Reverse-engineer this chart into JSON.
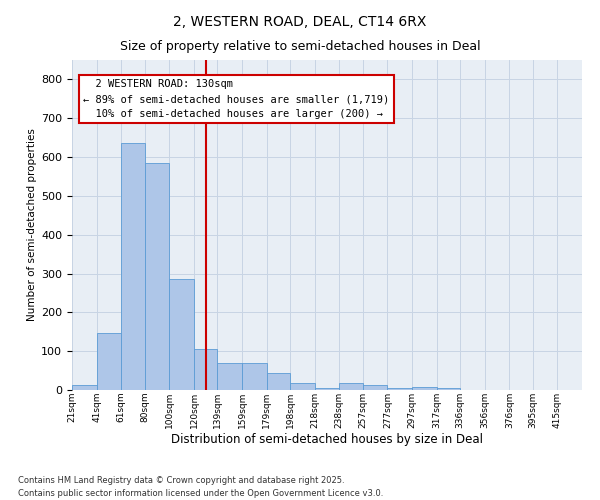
{
  "title": "2, WESTERN ROAD, DEAL, CT14 6RX",
  "subtitle": "Size of property relative to semi-detached houses in Deal",
  "xlabel": "Distribution of semi-detached houses by size in Deal",
  "ylabel": "Number of semi-detached properties",
  "property_label": "2 WESTERN ROAD: 130sqm",
  "pct_smaller": 89,
  "count_smaller": 1719,
  "pct_larger": 10,
  "count_larger": 200,
  "bin_labels": [
    "21sqm",
    "41sqm",
    "61sqm",
    "80sqm",
    "100sqm",
    "120sqm",
    "139sqm",
    "159sqm",
    "179sqm",
    "198sqm",
    "218sqm",
    "238sqm",
    "257sqm",
    "277sqm",
    "297sqm",
    "317sqm",
    "336sqm",
    "356sqm",
    "376sqm",
    "395sqm",
    "415sqm"
  ],
  "bin_edges": [
    21,
    41,
    61,
    80,
    100,
    120,
    139,
    159,
    179,
    198,
    218,
    238,
    257,
    277,
    297,
    317,
    336,
    356,
    376,
    395,
    415,
    435
  ],
  "bar_heights": [
    12,
    148,
    635,
    585,
    285,
    105,
    70,
    70,
    45,
    18,
    5,
    18,
    12,
    5,
    8,
    5,
    0,
    0,
    0,
    0,
    0
  ],
  "bar_color": "#aec6e8",
  "bar_edge_color": "#5b9bd5",
  "vline_x": 130,
  "vline_color": "#cc0000",
  "annotation_box_color": "#cc0000",
  "plot_bg_color": "#e8eef5",
  "background_color": "#ffffff",
  "grid_color": "#c8d4e4",
  "ylim": [
    0,
    850
  ],
  "yticks": [
    0,
    100,
    200,
    300,
    400,
    500,
    600,
    700,
    800
  ],
  "footnote1": "Contains HM Land Registry data © Crown copyright and database right 2025.",
  "footnote2": "Contains public sector information licensed under the Open Government Licence v3.0."
}
